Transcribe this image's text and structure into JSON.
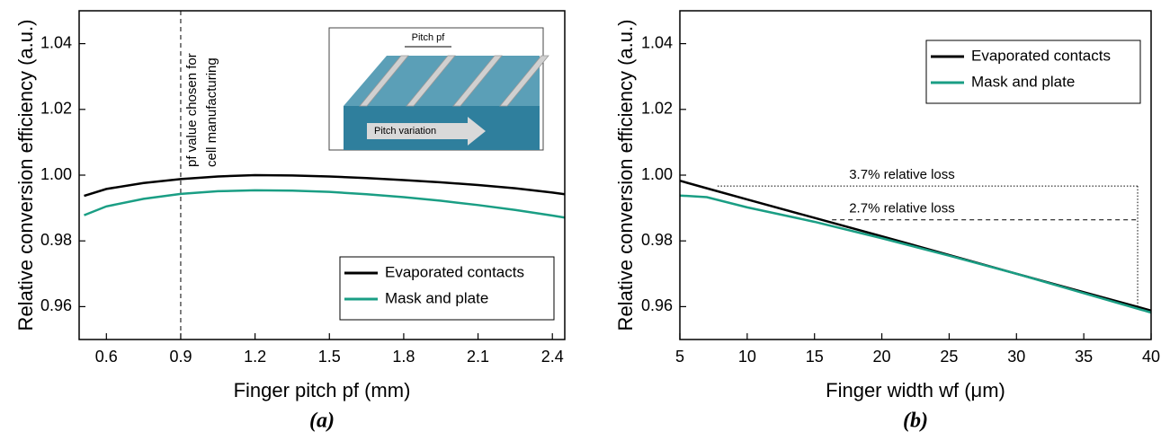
{
  "chart_data": [
    {
      "type": "line",
      "label": "(a)",
      "xlabel": "Finger pitch pf (mm)",
      "ylabel": "Relative conversion efficiency (a.u.)",
      "x": [
        0.51,
        0.6,
        0.75,
        0.9,
        1.05,
        1.2,
        1.35,
        1.5,
        1.65,
        1.8,
        1.95,
        2.1,
        2.25,
        2.4,
        2.45
      ],
      "series": [
        {
          "name": "Evaporated contacts",
          "color": "#000000",
          "values": [
            0.9937,
            0.9958,
            0.9976,
            0.9988,
            0.9996,
            1.0,
            0.9999,
            0.9996,
            0.9991,
            0.9985,
            0.9978,
            0.997,
            0.996,
            0.9947,
            0.9942
          ]
        },
        {
          "name": "Mask and plate",
          "color": "#1a9e84",
          "values": [
            0.9878,
            0.9905,
            0.9928,
            0.9943,
            0.9951,
            0.9954,
            0.9953,
            0.9949,
            0.9942,
            0.9933,
            0.9922,
            0.9909,
            0.9894,
            0.9877,
            0.9871
          ]
        }
      ],
      "xlim": [
        0.49,
        2.45
      ],
      "xticks": [
        0.6,
        0.9,
        1.2,
        1.5,
        1.8,
        2.1,
        2.4
      ],
      "ylim": [
        0.95,
        1.05
      ],
      "yticks": [
        0.96,
        0.98,
        {
          "value": 1,
          "label": "1.00"
        },
        1.02,
        1.04
      ],
      "legend": "lower right",
      "vline": {
        "x": 0.9,
        "text": [
          "pf value chosen for",
          "cell manufacturing"
        ]
      },
      "inset": {
        "pitch_label": "Pitch pf",
        "arrow_label": "Pitch variation"
      }
    },
    {
      "type": "line",
      "label": "(b)",
      "xlabel": "Finger width wf (μm)",
      "ylabel": "Relative conversion efficiency (a.u.)",
      "x": [
        5,
        7,
        10,
        15,
        20,
        25,
        30,
        35,
        40
      ],
      "series": [
        {
          "name": "Evaporated contacts",
          "color": "#000000",
          "values": [
            0.9983,
            0.996,
            0.9926,
            0.987,
            0.9814,
            0.9757,
            0.97,
            0.9644,
            0.9588
          ]
        },
        {
          "name": "Mask and plate",
          "color": "#1a9e84",
          "values": [
            0.9938,
            0.9933,
            0.9902,
            0.9858,
            0.9808,
            0.9755,
            0.97,
            0.9641,
            0.9582
          ]
        }
      ],
      "xlim": [
        5,
        40
      ],
      "xticks": [
        5,
        10,
        15,
        20,
        25,
        30,
        35,
        40
      ],
      "ylim": [
        0.95,
        1.05
      ],
      "yticks": [
        0.96,
        0.98,
        {
          "value": 1,
          "label": "1.00"
        },
        1.02,
        1.04
      ],
      "legend": "upper right",
      "annotations": [
        {
          "text": "3.7% relative loss",
          "y": 0.9967,
          "x": [
            7.8,
            39
          ],
          "drop": 0.9593,
          "style": "dotted"
        },
        {
          "text": "2.7% relative loss",
          "y": 0.9864,
          "x": [
            16.3,
            39
          ],
          "style": "dashed"
        }
      ]
    }
  ]
}
